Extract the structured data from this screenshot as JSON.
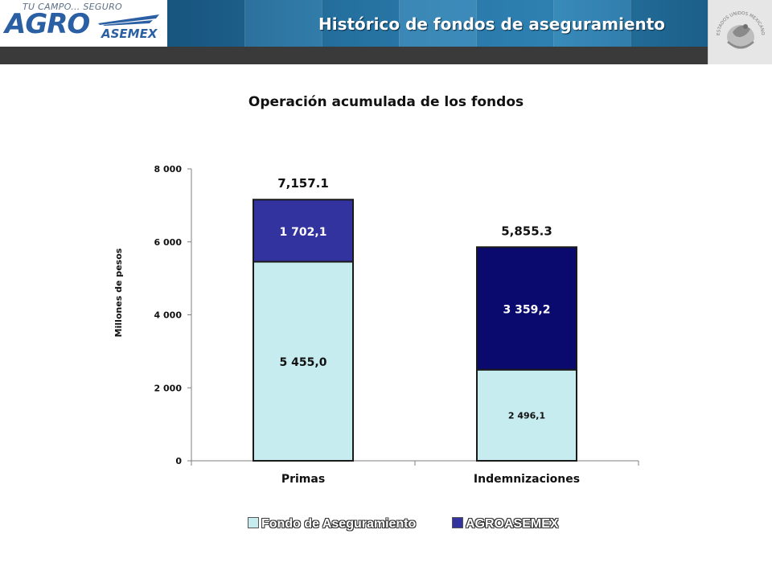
{
  "header": {
    "title": "Histórico de fondos de aseguramiento",
    "logo_tagline": "TU CAMPO... SEGURO",
    "logo_main": "AGRO",
    "logo_sub": "ASEMEX",
    "seal_text": "ESTADOS UNIDOS MEXICANOS"
  },
  "colors": {
    "header_band": "#2a7cae",
    "header_strip": "#3a3a3a",
    "fondo": "#c6ecef",
    "agroasemex_primas": "#3333a0",
    "agroasemex_indemnizaciones": "#0a0a6e"
  },
  "chart_data": {
    "type": "bar",
    "stacked": true,
    "title": "Operación acumulada de los fondos",
    "ylabel": "Millones de pesos",
    "xlabel": "",
    "ylim": [
      0,
      8000
    ],
    "yticks": [
      0,
      2000,
      4000,
      6000,
      8000
    ],
    "ytick_labels": [
      "0",
      "2 000",
      "4 000",
      "6 000",
      "8 000"
    ],
    "categories": [
      "Primas",
      "Indemnizaciones"
    ],
    "series": [
      {
        "name": "Fondo de Aseguramiento",
        "values": [
          5455.0,
          2496.1
        ],
        "labels": [
          "5 455,0",
          "2 496,1"
        ]
      },
      {
        "name": "AGROASEMEX",
        "values": [
          1702.1,
          3359.2
        ],
        "labels": [
          "1 702,1",
          "3 359,2"
        ]
      }
    ],
    "totals": [
      7157.1,
      5855.3
    ],
    "total_labels": [
      "7,157.1",
      "5,855.3"
    ],
    "legend_position": "bottom",
    "grid": false
  }
}
